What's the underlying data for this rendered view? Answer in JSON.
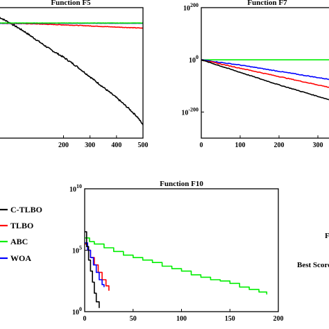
{
  "chart_data": [
    {
      "id": "f5",
      "type": "line",
      "title": "Function F5",
      "xlabel": "",
      "ylabel": "",
      "xlim": [
        -45,
        500
      ],
      "x_ticks": [
        200,
        300,
        400,
        500
      ],
      "ylim": [
        0,
        1
      ],
      "grid": false,
      "series": [
        {
          "color": "#000000",
          "x": [
            -45,
            0,
            50,
            100,
            150,
            200,
            250,
            300,
            350,
            400,
            450,
            480,
            500
          ],
          "y": [
            0.93,
            0.88,
            0.82,
            0.75,
            0.68,
            0.62,
            0.55,
            0.47,
            0.39,
            0.31,
            0.22,
            0.16,
            0.1
          ]
        },
        {
          "color": "#ff0000",
          "x": [
            -45,
            0,
            100,
            200,
            300,
            400,
            500
          ],
          "y": [
            0.88,
            0.879,
            0.875,
            0.868,
            0.86,
            0.851,
            0.843
          ]
        },
        {
          "color": "#0000ff",
          "x": [
            -45,
            0,
            100,
            200,
            300,
            400,
            500
          ],
          "y": [
            0.88,
            0.88,
            0.88,
            0.88,
            0.88,
            0.88,
            0.88
          ]
        },
        {
          "color": "#00dd00",
          "x": [
            -45,
            0,
            100,
            200,
            300,
            400,
            500
          ],
          "y": [
            0.882,
            0.882,
            0.882,
            0.882,
            0.882,
            0.882,
            0.882
          ]
        }
      ]
    },
    {
      "id": "f7",
      "type": "line",
      "title": "Function F7",
      "xlabel": "",
      "ylabel": "",
      "xlim": [
        0,
        400
      ],
      "x_ticks": [
        0,
        100,
        200,
        300
      ],
      "y_scale": "log",
      "ylim_exponent": [
        -300,
        200
      ],
      "y_ticks": [
        {
          "base": "10",
          "exp": "200",
          "value": 200
        },
        {
          "base": "10",
          "exp": "0",
          "value": 0
        },
        {
          "base": "10",
          "exp": "-200",
          "value": -200
        }
      ],
      "grid": false,
      "series": [
        {
          "color": "#00ee00",
          "x": [
            0,
            400
          ],
          "y_exp": [
            0,
            0
          ]
        },
        {
          "color": "#0000ff",
          "x": [
            0,
            100,
            200,
            300,
            400
          ],
          "y_exp": [
            0,
            -20,
            -44,
            -68,
            -92
          ]
        },
        {
          "color": "#ff0000",
          "x": [
            0,
            100,
            200,
            300,
            400
          ],
          "y_exp": [
            0,
            -32,
            -64,
            -96,
            -128
          ]
        },
        {
          "color": "#000000",
          "x": [
            0,
            100,
            200,
            300,
            400
          ],
          "y_exp": [
            0,
            -48,
            -96,
            -140,
            -184
          ]
        }
      ]
    },
    {
      "id": "f10",
      "type": "line",
      "title": "Function F10",
      "xlabel": "",
      "ylabel": "",
      "xlim": [
        0,
        200
      ],
      "x_ticks": [
        0,
        50,
        100,
        150,
        200
      ],
      "y_scale": "log",
      "ylim_exponent": [
        0,
        10
      ],
      "y_ticks": [
        {
          "base": "10",
          "exp": "10",
          "value": 10
        },
        {
          "base": "10",
          "exp": "5",
          "value": 5
        },
        {
          "base": "10",
          "exp": "0",
          "value": 0
        }
      ],
      "grid": false,
      "series": [
        {
          "color": "#00ee00",
          "x": [
            0,
            5,
            10,
            20,
            30,
            40,
            50,
            60,
            70,
            80,
            90,
            100,
            110,
            120,
            130,
            140,
            150,
            160,
            170,
            180,
            188
          ],
          "y_exp": [
            6.0,
            5.7,
            5.5,
            5.2,
            4.9,
            4.6,
            4.4,
            4.2,
            4.0,
            3.7,
            3.5,
            3.3,
            3.0,
            2.8,
            2.6,
            2.5,
            2.3,
            2.0,
            1.8,
            1.6,
            1.4
          ]
        },
        {
          "color": "#ff0000",
          "x": [
            0,
            3,
            6,
            10,
            14,
            18,
            22,
            25
          ],
          "y_exp": [
            5.5,
            5.0,
            4.4,
            3.8,
            3.2,
            2.6,
            2.1,
            1.7
          ]
        },
        {
          "color": "#0000ff",
          "x": [
            0,
            3,
            6,
            9,
            12,
            15,
            18,
            20
          ],
          "y_exp": [
            5.6,
            5.0,
            4.4,
            3.8,
            3.2,
            2.6,
            2.2,
            2.0
          ]
        },
        {
          "color": "#000000",
          "x": [
            0,
            2,
            4,
            6,
            8,
            10,
            12,
            15
          ],
          "y_exp": [
            6.5,
            5.3,
            4.2,
            3.3,
            2.4,
            1.5,
            0.8,
            0.3
          ]
        }
      ]
    }
  ],
  "legend": {
    "placement": "left",
    "entries": [
      {
        "label": "C-TLBO",
        "color": "#000000"
      },
      {
        "label": "TLBO",
        "color": "#ff0000"
      },
      {
        "label": "ABC",
        "color": "#00ee00"
      },
      {
        "label": "WOA",
        "color": "#0000ff"
      }
    ]
  },
  "side_text": {
    "letter": "F",
    "label": "Best Score"
  }
}
